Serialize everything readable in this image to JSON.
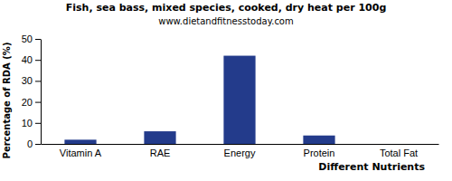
{
  "chart_data": {
    "type": "bar",
    "title": "Fish, sea bass, mixed species, cooked, dry heat per 100g",
    "subtitle": "www.dietandfitnesstoday.com",
    "x_label": "Different Nutrients",
    "y_label": "Percentage of RDA (%)",
    "categories": [
      "Vitamin A",
      "RAE",
      "Energy",
      "Protein",
      "Total Fat"
    ],
    "values": [
      2,
      6,
      42,
      4,
      0
    ],
    "color": "#233b8b",
    "ylim": [
      0,
      50
    ],
    "yticks": [
      0,
      10,
      20,
      30,
      40,
      50
    ],
    "grid": false
  }
}
